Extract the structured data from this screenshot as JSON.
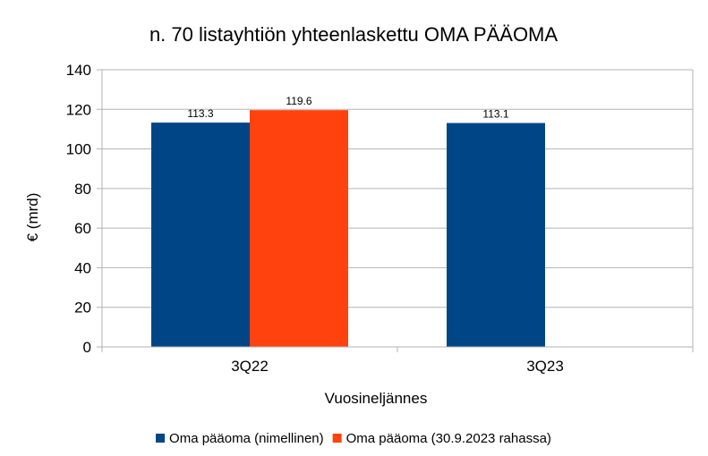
{
  "chart_data": {
    "type": "bar",
    "title": "n. 70 listayhtiön yhteenlaskettu OMA PÄÄOMA",
    "xlabel": "Vuosineljännes",
    "ylabel": "€ (mrd)",
    "ylim": [
      0,
      140
    ],
    "yticks": [
      "0",
      "20",
      "40",
      "60",
      "80",
      "100",
      "120",
      "140"
    ],
    "grid": true,
    "legend_position": "bottom",
    "categories": [
      "3Q22",
      "3Q23"
    ],
    "series": [
      {
        "name": "Oma pääoma (nimellinen)",
        "color": "#004586",
        "values": [
          113.3,
          113.1
        ],
        "labels": [
          "113.3",
          "113.1"
        ]
      },
      {
        "name": "Oma pääoma (30.9.2023 rahassa)",
        "color": "#ff420e",
        "values": [
          119.6,
          null
        ],
        "labels": [
          "119.6",
          ""
        ]
      }
    ]
  }
}
